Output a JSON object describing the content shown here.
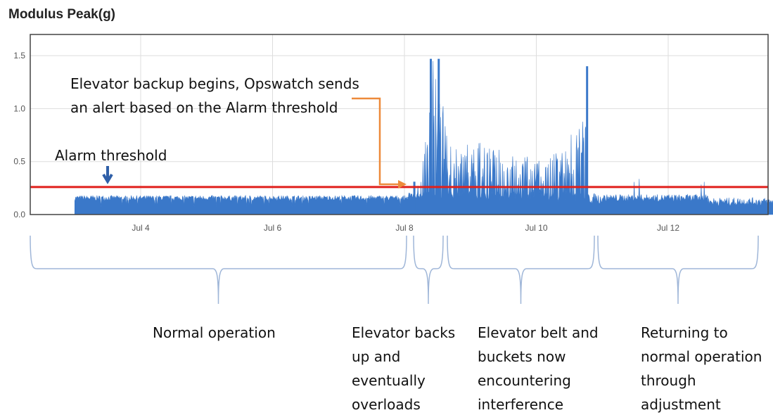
{
  "chart_data": {
    "type": "line",
    "title": "Modulus Peak(g)",
    "xlabel": "",
    "ylabel": "",
    "ylim": [
      0,
      1.7
    ],
    "xlim": [
      "2023-07-03",
      "2023-07-13"
    ],
    "year_note": "year not shown; dates use placeholder year",
    "yticks": [
      0.0,
      0.5,
      1.0,
      1.5
    ],
    "ytick_labels": [
      "0.0",
      "0.5",
      "1.0",
      "1.5"
    ],
    "xticks": [
      "Jul 4",
      "Jul 6",
      "Jul 8",
      "Jul 10",
      "Jul 12"
    ],
    "grid": true,
    "fill_color": "#3a78c9",
    "threshold": {
      "label": "Alarm threshold",
      "value": 0.26,
      "color": "#e0201c"
    },
    "series": [
      {
        "name": "",
        "x": [
          "Jul 3 00:00",
          "Jul 3 12:00",
          "Jul 4 00:00",
          "Jul 4 12:00",
          "Jul 5 00:00",
          "Jul 5 12:00",
          "Jul 6 00:00",
          "Jul 6 12:00",
          "Jul 7 00:00",
          "Jul 7 12:00",
          "Jul 8 00:00",
          "Jul 8 06:00",
          "Jul 8 10:00",
          "Jul 8 12:00",
          "Jul 8 16:00",
          "Jul 8 20:00",
          "Jul 9 00:00",
          "Jul 9 06:00",
          "Jul 9 12:00",
          "Jul 9 18:00",
          "Jul 10 00:00",
          "Jul 10 06:00",
          "Jul 10 12:00",
          "Jul 10 16:00",
          "Jul 10 20:00",
          "Jul 11 00:00",
          "Jul 11 12:00",
          "Jul 12 00:00",
          "Jul 12 06:00",
          "Jul 12 12:00",
          "Jul 12 18:00",
          "Jul 13 00:00"
        ],
        "y": [
          0.18,
          0.17,
          0.17,
          0.16,
          0.17,
          0.16,
          0.17,
          0.17,
          0.16,
          0.17,
          0.2,
          0.31,
          1.47,
          1.47,
          0.7,
          0.66,
          0.68,
          0.7,
          0.6,
          0.58,
          0.55,
          0.6,
          0.65,
          1.4,
          0.38,
          0.22,
          0.32,
          0.22,
          0.27,
          0.38,
          0.17,
          0.15
        ]
      }
    ]
  },
  "annotations": {
    "alert_lines": [
      "Elevator backup begins, Opswatch sends",
      "an alert based on the Alarm threshold"
    ],
    "threshold_label": "Alarm threshold"
  },
  "phases": [
    {
      "label_lines": [
        "Normal operation"
      ]
    },
    {
      "label_lines": [
        "Elevator backs",
        "up and",
        "eventually",
        "overloads"
      ]
    },
    {
      "label_lines": [
        "Elevator belt and",
        "buckets now",
        "encountering",
        "interference"
      ]
    },
    {
      "label_lines": [
        "Returning to",
        "normal operation",
        "through",
        "adjustment"
      ]
    }
  ]
}
